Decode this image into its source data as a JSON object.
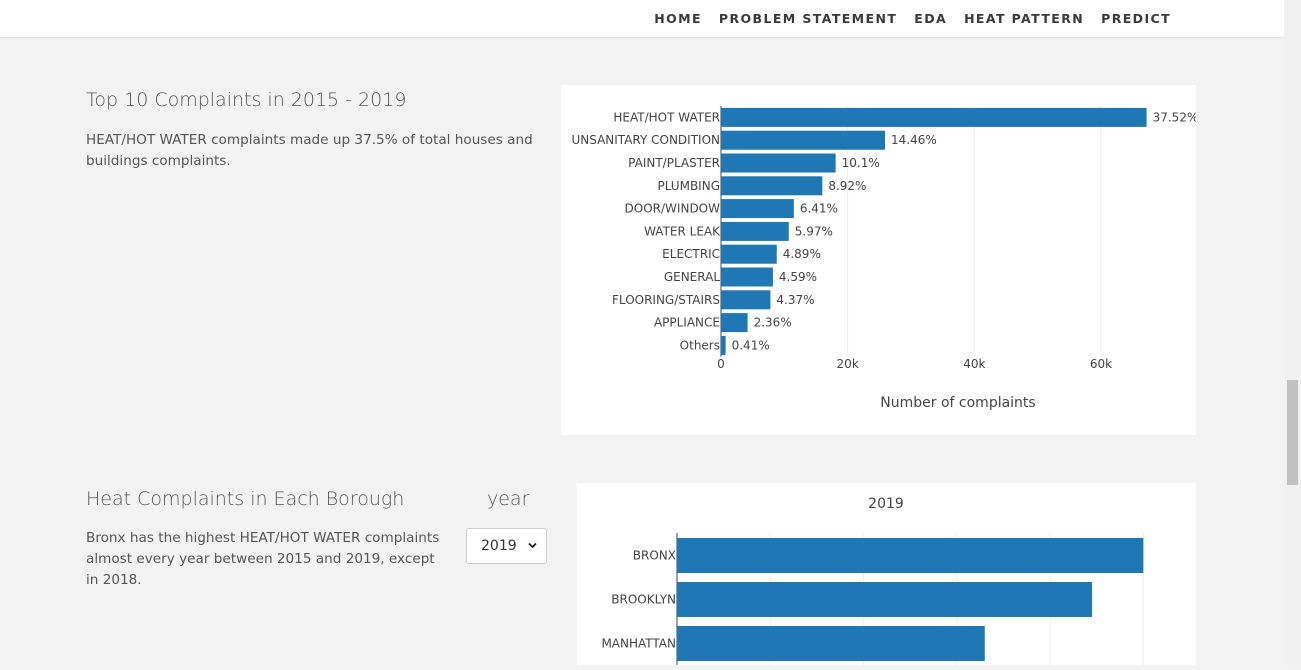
{
  "nav": {
    "items": [
      "HOME",
      "PROBLEM STATEMENT",
      "EDA",
      "HEAT PATTERN",
      "PREDICT"
    ]
  },
  "section1": {
    "title": "Top 10 Complaints in 2015 - 2019",
    "description": "HEAT/HOT WATER complaints made up 37.5% of total houses and buildings complaints."
  },
  "section2": {
    "title": "Heat Complaints in Each Borough",
    "description": "Bronx has the highest HEAT/HOT WATER complaints almost every year between 2015 and 2019, except in 2018.",
    "year_label": "year",
    "year_selected": "2019"
  },
  "colors": {
    "bar": "#1f77b4"
  },
  "chart_data": [
    {
      "type": "bar",
      "orientation": "horizontal",
      "title": "",
      "categories": [
        "HEAT/HOT WATER",
        "UNSANITARY CONDITION",
        "PAINT/PLASTER",
        "PLUMBING",
        "DOOR/WINDOW",
        "WATER LEAK",
        "ELECTRIC",
        "GENERAL",
        "FLOORING/STAIRS",
        "APPLIANCE",
        "Others"
      ],
      "values": [
        67200,
        25900,
        18100,
        16000,
        11500,
        10700,
        8800,
        8200,
        7800,
        4200,
        730
      ],
      "labels": [
        "37.52%",
        "14.46%",
        "10.1%",
        "8.92%",
        "6.41%",
        "5.97%",
        "4.89%",
        "4.59%",
        "4.37%",
        "2.36%",
        "0.41%"
      ],
      "xlabel": "Number of complaints",
      "ylabel": "",
      "xlim": [
        0,
        75000
      ],
      "xticks": [
        0,
        20000,
        40000,
        60000
      ],
      "xtick_labels": [
        "0",
        "20k",
        "40k",
        "60k"
      ]
    },
    {
      "type": "bar",
      "orientation": "horizontal",
      "title": "2019",
      "categories": [
        "BRONX",
        "BROOKLYN",
        "MANHATTAN"
      ],
      "values": [
        50000,
        44500,
        33000
      ],
      "xlim": [
        0,
        52000
      ],
      "xticks": [
        10000,
        20000,
        30000,
        40000,
        50000
      ]
    }
  ]
}
